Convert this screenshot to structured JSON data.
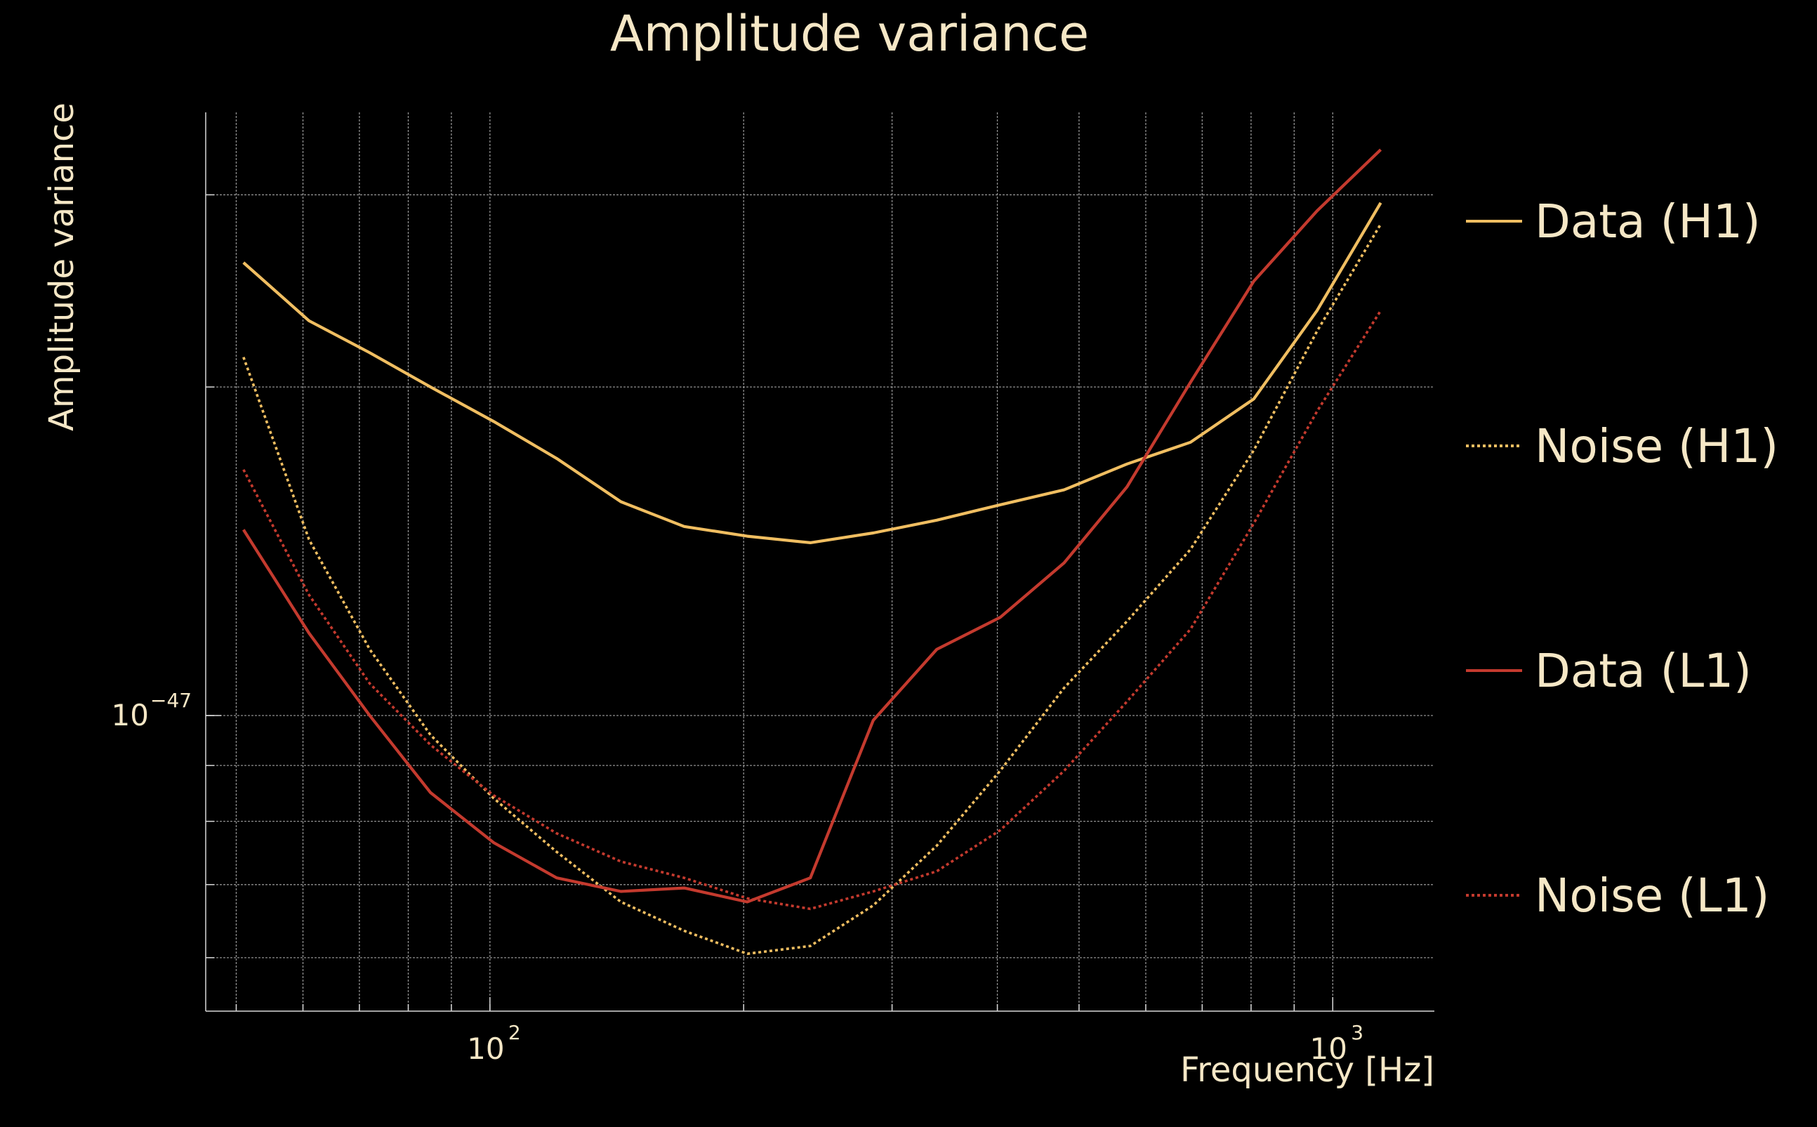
{
  "chart_data": {
    "type": "line",
    "title": "Amplitude variance",
    "xlabel": "Frequency [Hz]",
    "ylabel": "Amplitude variance",
    "xscale": "log",
    "yscale": "log",
    "xlim": [
      46,
      1320
    ],
    "ylim": [
      5.36e-48,
      3.57e-47
    ],
    "x_ticks": [
      {
        "value": 100,
        "base": "10",
        "exp": "2"
      },
      {
        "value": 1000,
        "base": "10",
        "exp": "3"
      }
    ],
    "y_ticks": [
      {
        "value": 1e-47,
        "base": "10",
        "exp": "−47"
      }
    ],
    "grid": true,
    "legend_position": "right",
    "series": [
      {
        "name": "Data (H1)",
        "color": "#f0be61",
        "style": "solid",
        "x": [
          51,
          61,
          72,
          85,
          101,
          120,
          143,
          170,
          202,
          240,
          285,
          339,
          403,
          480,
          570,
          678,
          806,
          958,
          1140
        ],
        "y": [
          2.6e-47,
          2.3e-47,
          2.15e-47,
          2e-47,
          1.86e-47,
          1.72e-47,
          1.57e-47,
          1.49e-47,
          1.46e-47,
          1.44e-47,
          1.47e-47,
          1.51e-47,
          1.56e-47,
          1.61e-47,
          1.7e-47,
          1.78e-47,
          1.95e-47,
          2.35e-47,
          2.95e-47
        ]
      },
      {
        "name": "Noise (H1)",
        "color": "#f0be61",
        "style": "dotted",
        "x": [
          51,
          61,
          72,
          85,
          101,
          120,
          143,
          170,
          202,
          240,
          285,
          339,
          403,
          480,
          570,
          678,
          806,
          958,
          1140
        ],
        "y": [
          2.13e-47,
          1.45e-47,
          1.15e-47,
          9.6e-48,
          8.4e-48,
          7.5e-48,
          6.75e-48,
          6.35e-48,
          6.05e-48,
          6.15e-48,
          6.7e-48,
          7.6e-48,
          8.9e-48,
          1.06e-47,
          1.22e-47,
          1.42e-47,
          1.75e-47,
          2.25e-47,
          2.82e-47
        ]
      },
      {
        "name": "Data (L1)",
        "color": "#c43a2e",
        "style": "solid",
        "x": [
          51,
          61,
          72,
          85,
          101,
          120,
          143,
          170,
          202,
          240,
          285,
          339,
          403,
          480,
          570,
          678,
          806,
          958,
          1140
        ],
        "y": [
          1.48e-47,
          1.19e-47,
          1e-47,
          8.5e-48,
          7.65e-48,
          7.1e-48,
          6.9e-48,
          6.95e-48,
          6.75e-48,
          7.1e-48,
          9.9e-48,
          1.15e-47,
          1.23e-47,
          1.38e-47,
          1.62e-47,
          2.02e-47,
          2.5e-47,
          2.9e-47,
          3.3e-47
        ]
      },
      {
        "name": "Noise (L1)",
        "color": "#c43a2e",
        "style": "dotted",
        "x": [
          51,
          61,
          72,
          85,
          101,
          120,
          143,
          170,
          202,
          240,
          285,
          339,
          403,
          480,
          570,
          678,
          806,
          958,
          1140
        ],
        "y": [
          1.68e-47,
          1.29e-47,
          1.07e-47,
          9.4e-48,
          8.45e-48,
          7.8e-48,
          7.35e-48,
          7.1e-48,
          6.8e-48,
          6.65e-48,
          6.9e-48,
          7.2e-48,
          7.85e-48,
          8.9e-48,
          1.03e-47,
          1.2e-47,
          1.5e-47,
          1.9e-47,
          2.35e-47
        ]
      }
    ]
  }
}
